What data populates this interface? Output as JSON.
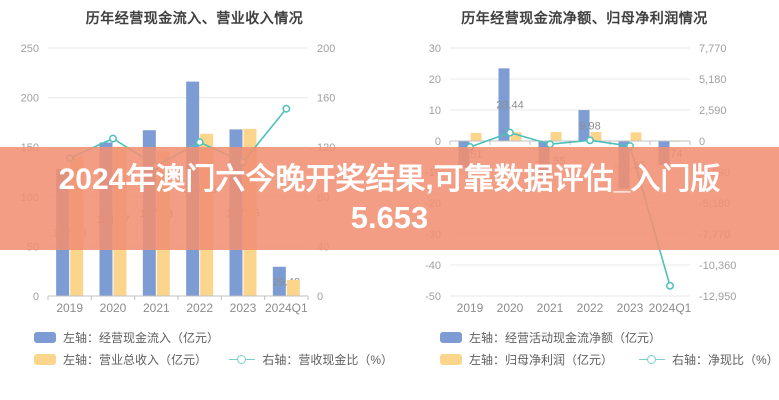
{
  "banner": {
    "line1": "2024年澳门六今晚开奖结果,可靠数据评估_入门版",
    "line2": "5.653",
    "background_color": "#F09073",
    "text_color": "#FFFFFF"
  },
  "colors": {
    "bar_blue": "#7D9CD3",
    "bar_orange": "#FBD58C",
    "line_teal": "#4EC0BC",
    "grid": "#EAEAEA",
    "axis_line": "#C0C0C0",
    "tick_label": "#A0A0A0",
    "bar_label": "#8F8F8F",
    "title": "#3F3F3F"
  },
  "chart_data": [
    {
      "type": "bar",
      "title": "历年经营现金流入、营业收入情况",
      "categories": [
        "2019",
        "2020",
        "2021",
        "2022",
        "2023",
        "2024Q1"
      ],
      "series": [
        {
          "name": "左轴：经营现金流入（亿元）",
          "kind": "bar",
          "axis": "left",
          "color": "#7D9CD3",
          "values": [
            127.89,
            154.77,
            167.13,
            216.13,
            167.95,
            29.48
          ],
          "labels": [
            "127.89",
            "154.77",
            "167.13",
            "216.13",
            "167.95",
            "29.48"
          ]
        },
        {
          "name": "左轴：营业总收入（亿元）",
          "kind": "bar",
          "axis": "left",
          "color": "#FBD58C",
          "values": [
            140,
            150.5,
            146,
            163.5,
            168.5,
            16.1
          ]
        },
        {
          "name": "右轴：营收现金比（%）",
          "kind": "line",
          "axis": "right",
          "color": "#4EC0BC",
          "values": [
            111,
            127,
            105,
            124,
            108,
            151
          ]
        }
      ],
      "left_axis": {
        "min": 0,
        "max": 250,
        "step": 50
      },
      "right_axis": {
        "min": 0,
        "max": 200,
        "step": 40
      },
      "grid": true,
      "legend_position": "bottom"
    },
    {
      "type": "bar",
      "title": "历年经营现金流净额、归母净利润情况",
      "categories": [
        "2019",
        "2020",
        "2021",
        "2022",
        "2023",
        "2024Q1"
      ],
      "series": [
        {
          "name": "左轴：经营活动现金流净额（亿元）",
          "kind": "bar",
          "axis": "left",
          "color": "#7D9CD3",
          "values": [
            -8.51,
            23.44,
            -12.55,
            9.98,
            -15.35,
            -7.74
          ],
          "labels": [
            "-8.51",
            "23.44",
            "-12.55",
            "9.98",
            "-15.35",
            "-7.74"
          ]
        },
        {
          "name": "左轴：归母净利润（亿元）",
          "kind": "bar",
          "axis": "left",
          "color": "#FBD58C",
          "values": [
            2.6,
            2.8,
            2.9,
            2.9,
            2.8,
            0.06
          ]
        },
        {
          "name": "右轴：净现比（%）",
          "kind": "line",
          "axis": "right",
          "color": "#4EC0BC",
          "values": [
            -500,
            700,
            -270,
            60,
            -420,
            -12100
          ]
        }
      ],
      "left_axis": {
        "min": -50,
        "max": 30,
        "step": 10
      },
      "right_axis": {
        "min": -12950,
        "max": 7770,
        "step": 2590,
        "format": "comma"
      },
      "grid": true,
      "legend_position": "bottom"
    }
  ]
}
